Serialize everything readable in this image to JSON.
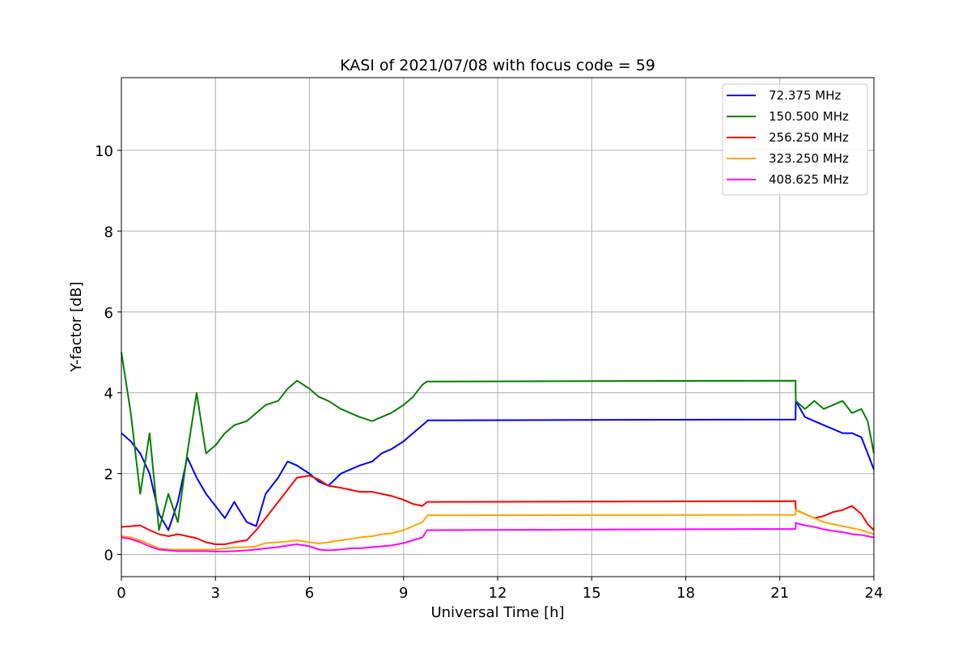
{
  "chart_data": {
    "type": "line",
    "title": "KASI of 2021/07/08 with focus code = 59",
    "xlabel": "Universal Time [h]",
    "ylabel": "Y-factor [dB]",
    "xlim": [
      0,
      24
    ],
    "ylim": [
      -0.55,
      11.8
    ],
    "xticks": [
      0,
      3,
      6,
      9,
      12,
      15,
      18,
      21,
      24
    ],
    "yticks": [
      0,
      2,
      4,
      6,
      8,
      10
    ],
    "grid": true,
    "legend_position": "top-right",
    "series": [
      {
        "name": " 72.375 MHz",
        "color": "#0000ff",
        "x": [
          0,
          0.3,
          0.6,
          0.9,
          1.2,
          1.5,
          1.8,
          2.1,
          2.4,
          2.7,
          3.0,
          3.3,
          3.6,
          4.0,
          4.3,
          4.6,
          5.0,
          5.3,
          5.6,
          6.0,
          6.3,
          6.6,
          7.0,
          7.3,
          7.6,
          8.0,
          8.3,
          8.6,
          9.0,
          9.3,
          9.6,
          9.75,
          9.76,
          21.5,
          21.51,
          21.8,
          22.1,
          22.4,
          22.7,
          23.0,
          23.3,
          23.6,
          23.8,
          24.0
        ],
        "y": [
          3.0,
          2.8,
          2.5,
          2.0,
          1.0,
          0.6,
          1.3,
          2.4,
          1.9,
          1.5,
          1.2,
          0.9,
          1.3,
          0.8,
          0.7,
          1.5,
          1.9,
          2.3,
          2.2,
          2.0,
          1.8,
          1.7,
          2.0,
          2.1,
          2.2,
          2.3,
          2.5,
          2.6,
          2.8,
          3.0,
          3.2,
          3.3,
          3.32,
          3.34,
          3.8,
          3.4,
          3.3,
          3.2,
          3.1,
          3.0,
          3.0,
          2.9,
          2.5,
          2.1
        ]
      },
      {
        "name": "150.500 MHz",
        "color": "#008000",
        "x": [
          0,
          0.3,
          0.6,
          0.9,
          1.2,
          1.5,
          1.8,
          2.1,
          2.4,
          2.7,
          3.0,
          3.3,
          3.6,
          4.0,
          4.3,
          4.6,
          5.0,
          5.3,
          5.6,
          6.0,
          6.3,
          6.6,
          7.0,
          7.3,
          7.6,
          8.0,
          8.3,
          8.6,
          9.0,
          9.3,
          9.6,
          9.75,
          9.76,
          21.5,
          21.51,
          21.8,
          22.1,
          22.4,
          22.7,
          23.0,
          23.3,
          23.6,
          23.8,
          24.0
        ],
        "y": [
          5.0,
          3.5,
          1.5,
          3.0,
          0.6,
          1.5,
          0.8,
          2.5,
          4.0,
          2.5,
          2.7,
          3.0,
          3.2,
          3.3,
          3.5,
          3.7,
          3.8,
          4.1,
          4.3,
          4.1,
          3.9,
          3.8,
          3.6,
          3.5,
          3.4,
          3.3,
          3.4,
          3.5,
          3.7,
          3.9,
          4.2,
          4.28,
          4.28,
          4.3,
          3.8,
          3.6,
          3.8,
          3.6,
          3.7,
          3.8,
          3.5,
          3.6,
          3.3,
          2.5
        ]
      },
      {
        "name": "256.250 MHz",
        "color": "#ff0000",
        "x": [
          0,
          0.3,
          0.6,
          0.9,
          1.2,
          1.5,
          1.8,
          2.1,
          2.4,
          2.7,
          3.0,
          3.3,
          3.6,
          4.0,
          4.3,
          4.6,
          5.0,
          5.3,
          5.6,
          6.0,
          6.3,
          6.6,
          7.0,
          7.3,
          7.6,
          8.0,
          8.3,
          8.6,
          9.0,
          9.3,
          9.6,
          9.75,
          9.76,
          21.5,
          21.51,
          21.8,
          22.1,
          22.4,
          22.7,
          23.0,
          23.3,
          23.6,
          23.8,
          24.0
        ],
        "y": [
          0.68,
          0.7,
          0.72,
          0.6,
          0.5,
          0.45,
          0.5,
          0.45,
          0.4,
          0.3,
          0.25,
          0.25,
          0.3,
          0.35,
          0.6,
          0.9,
          1.3,
          1.6,
          1.9,
          1.95,
          1.85,
          1.7,
          1.65,
          1.6,
          1.55,
          1.55,
          1.5,
          1.45,
          1.35,
          1.25,
          1.2,
          1.3,
          1.3,
          1.32,
          1.1,
          1.0,
          0.9,
          0.95,
          1.05,
          1.1,
          1.2,
          1.0,
          0.75,
          0.6
        ]
      },
      {
        "name": "323.250 MHz",
        "color": "#ffa500",
        "x": [
          0,
          0.3,
          0.6,
          0.9,
          1.2,
          1.5,
          1.8,
          2.1,
          2.4,
          2.7,
          3.0,
          3.3,
          3.6,
          4.0,
          4.3,
          4.6,
          5.0,
          5.3,
          5.6,
          6.0,
          6.3,
          6.6,
          7.0,
          7.3,
          7.6,
          8.0,
          8.3,
          8.6,
          9.0,
          9.3,
          9.6,
          9.75,
          9.76,
          21.5,
          21.51,
          21.8,
          22.1,
          22.4,
          22.7,
          23.0,
          23.3,
          23.6,
          23.8,
          24.0
        ],
        "y": [
          0.45,
          0.42,
          0.35,
          0.25,
          0.15,
          0.12,
          0.12,
          0.12,
          0.12,
          0.12,
          0.12,
          0.15,
          0.17,
          0.18,
          0.2,
          0.28,
          0.3,
          0.32,
          0.35,
          0.3,
          0.27,
          0.3,
          0.35,
          0.38,
          0.42,
          0.45,
          0.5,
          0.52,
          0.6,
          0.7,
          0.8,
          0.95,
          0.97,
          0.98,
          1.1,
          1.0,
          0.9,
          0.8,
          0.75,
          0.7,
          0.65,
          0.6,
          0.55,
          0.5
        ]
      },
      {
        "name": "408.625 MHz",
        "color": "#ff00ff",
        "x": [
          0,
          0.3,
          0.6,
          0.9,
          1.2,
          1.5,
          1.8,
          2.1,
          2.4,
          2.7,
          3.0,
          3.3,
          3.6,
          4.0,
          4.3,
          4.6,
          5.0,
          5.3,
          5.6,
          6.0,
          6.3,
          6.6,
          7.0,
          7.3,
          7.6,
          8.0,
          8.3,
          8.6,
          9.0,
          9.3,
          9.6,
          9.75,
          9.76,
          21.5,
          21.51,
          21.8,
          22.1,
          22.4,
          22.7,
          23.0,
          23.3,
          23.6,
          23.8,
          24.0
        ],
        "y": [
          0.42,
          0.38,
          0.3,
          0.2,
          0.12,
          0.1,
          0.08,
          0.08,
          0.08,
          0.08,
          0.07,
          0.07,
          0.08,
          0.1,
          0.12,
          0.15,
          0.18,
          0.22,
          0.25,
          0.2,
          0.12,
          0.1,
          0.12,
          0.15,
          0.15,
          0.18,
          0.2,
          0.22,
          0.28,
          0.35,
          0.42,
          0.6,
          0.6,
          0.63,
          0.78,
          0.72,
          0.68,
          0.62,
          0.58,
          0.55,
          0.5,
          0.48,
          0.45,
          0.42
        ]
      }
    ]
  }
}
